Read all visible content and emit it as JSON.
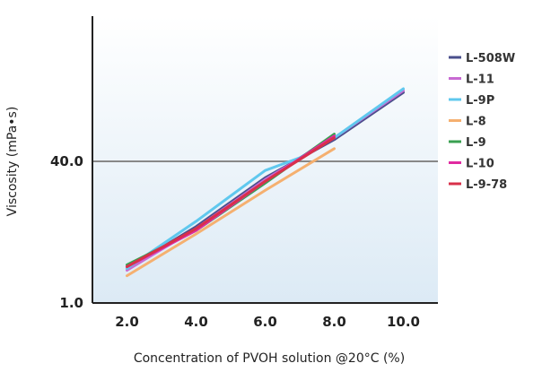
{
  "chart_data": {
    "type": "line",
    "title": "",
    "xlabel": "Concentration of PVOH solution @20°C (%)",
    "ylabel": "Viscosity (mPa•s)",
    "xlim": [
      1.0,
      11.0
    ],
    "ylim": [
      1.0,
      80.0
    ],
    "x_ticks": [
      "2.0",
      "4.0",
      "6.0",
      "8.0",
      "10.0"
    ],
    "y_ticks": [
      {
        "label": "1.0",
        "value": 1.0
      },
      {
        "label": "40.0",
        "value": 40.0
      }
    ],
    "reference_line": {
      "value": 40.0,
      "color": "#888888"
    },
    "legend_position": "right",
    "series": [
      {
        "name": "L-508W",
        "color": "#4a4f8c",
        "x": [
          2.0,
          4.0,
          6.0,
          8.0,
          10.0
        ],
        "y": [
          10.5,
          22.0,
          35.5,
          46.0,
          59.0
        ]
      },
      {
        "name": "L-11",
        "color": "#c86ad2",
        "x": [
          2.0,
          4.0,
          6.0,
          8.0,
          10.0
        ],
        "y": [
          10.0,
          21.5,
          35.0,
          46.5,
          59.5
        ]
      },
      {
        "name": "L-9P",
        "color": "#5fc8ee",
        "x": [
          2.0,
          4.0,
          6.0,
          7.0,
          8.0,
          10.0
        ],
        "y": [
          10.5,
          23.5,
          37.5,
          41.0,
          46.5,
          60.0
        ]
      },
      {
        "name": "L-8",
        "color": "#f5b070",
        "x": [
          2.0,
          4.0,
          6.0,
          8.0
        ],
        "y": [
          8.5,
          20.0,
          32.0,
          43.5
        ]
      },
      {
        "name": "L-9",
        "color": "#3aa050",
        "x": [
          2.0,
          4.0,
          6.0,
          8.0
        ],
        "y": [
          11.5,
          21.0,
          34.0,
          47.5
        ]
      },
      {
        "name": "L-10",
        "color": "#e02aa0",
        "x": [
          2.0,
          4.0,
          6.0,
          8.0
        ],
        "y": [
          11.0,
          21.0,
          34.5,
          47.0
        ]
      },
      {
        "name": "L-9-78",
        "color": "#d8304a",
        "x": [
          2.0,
          4.0,
          6.0,
          8.0
        ],
        "y": [
          11.0,
          21.5,
          34.5,
          46.5
        ]
      }
    ]
  }
}
